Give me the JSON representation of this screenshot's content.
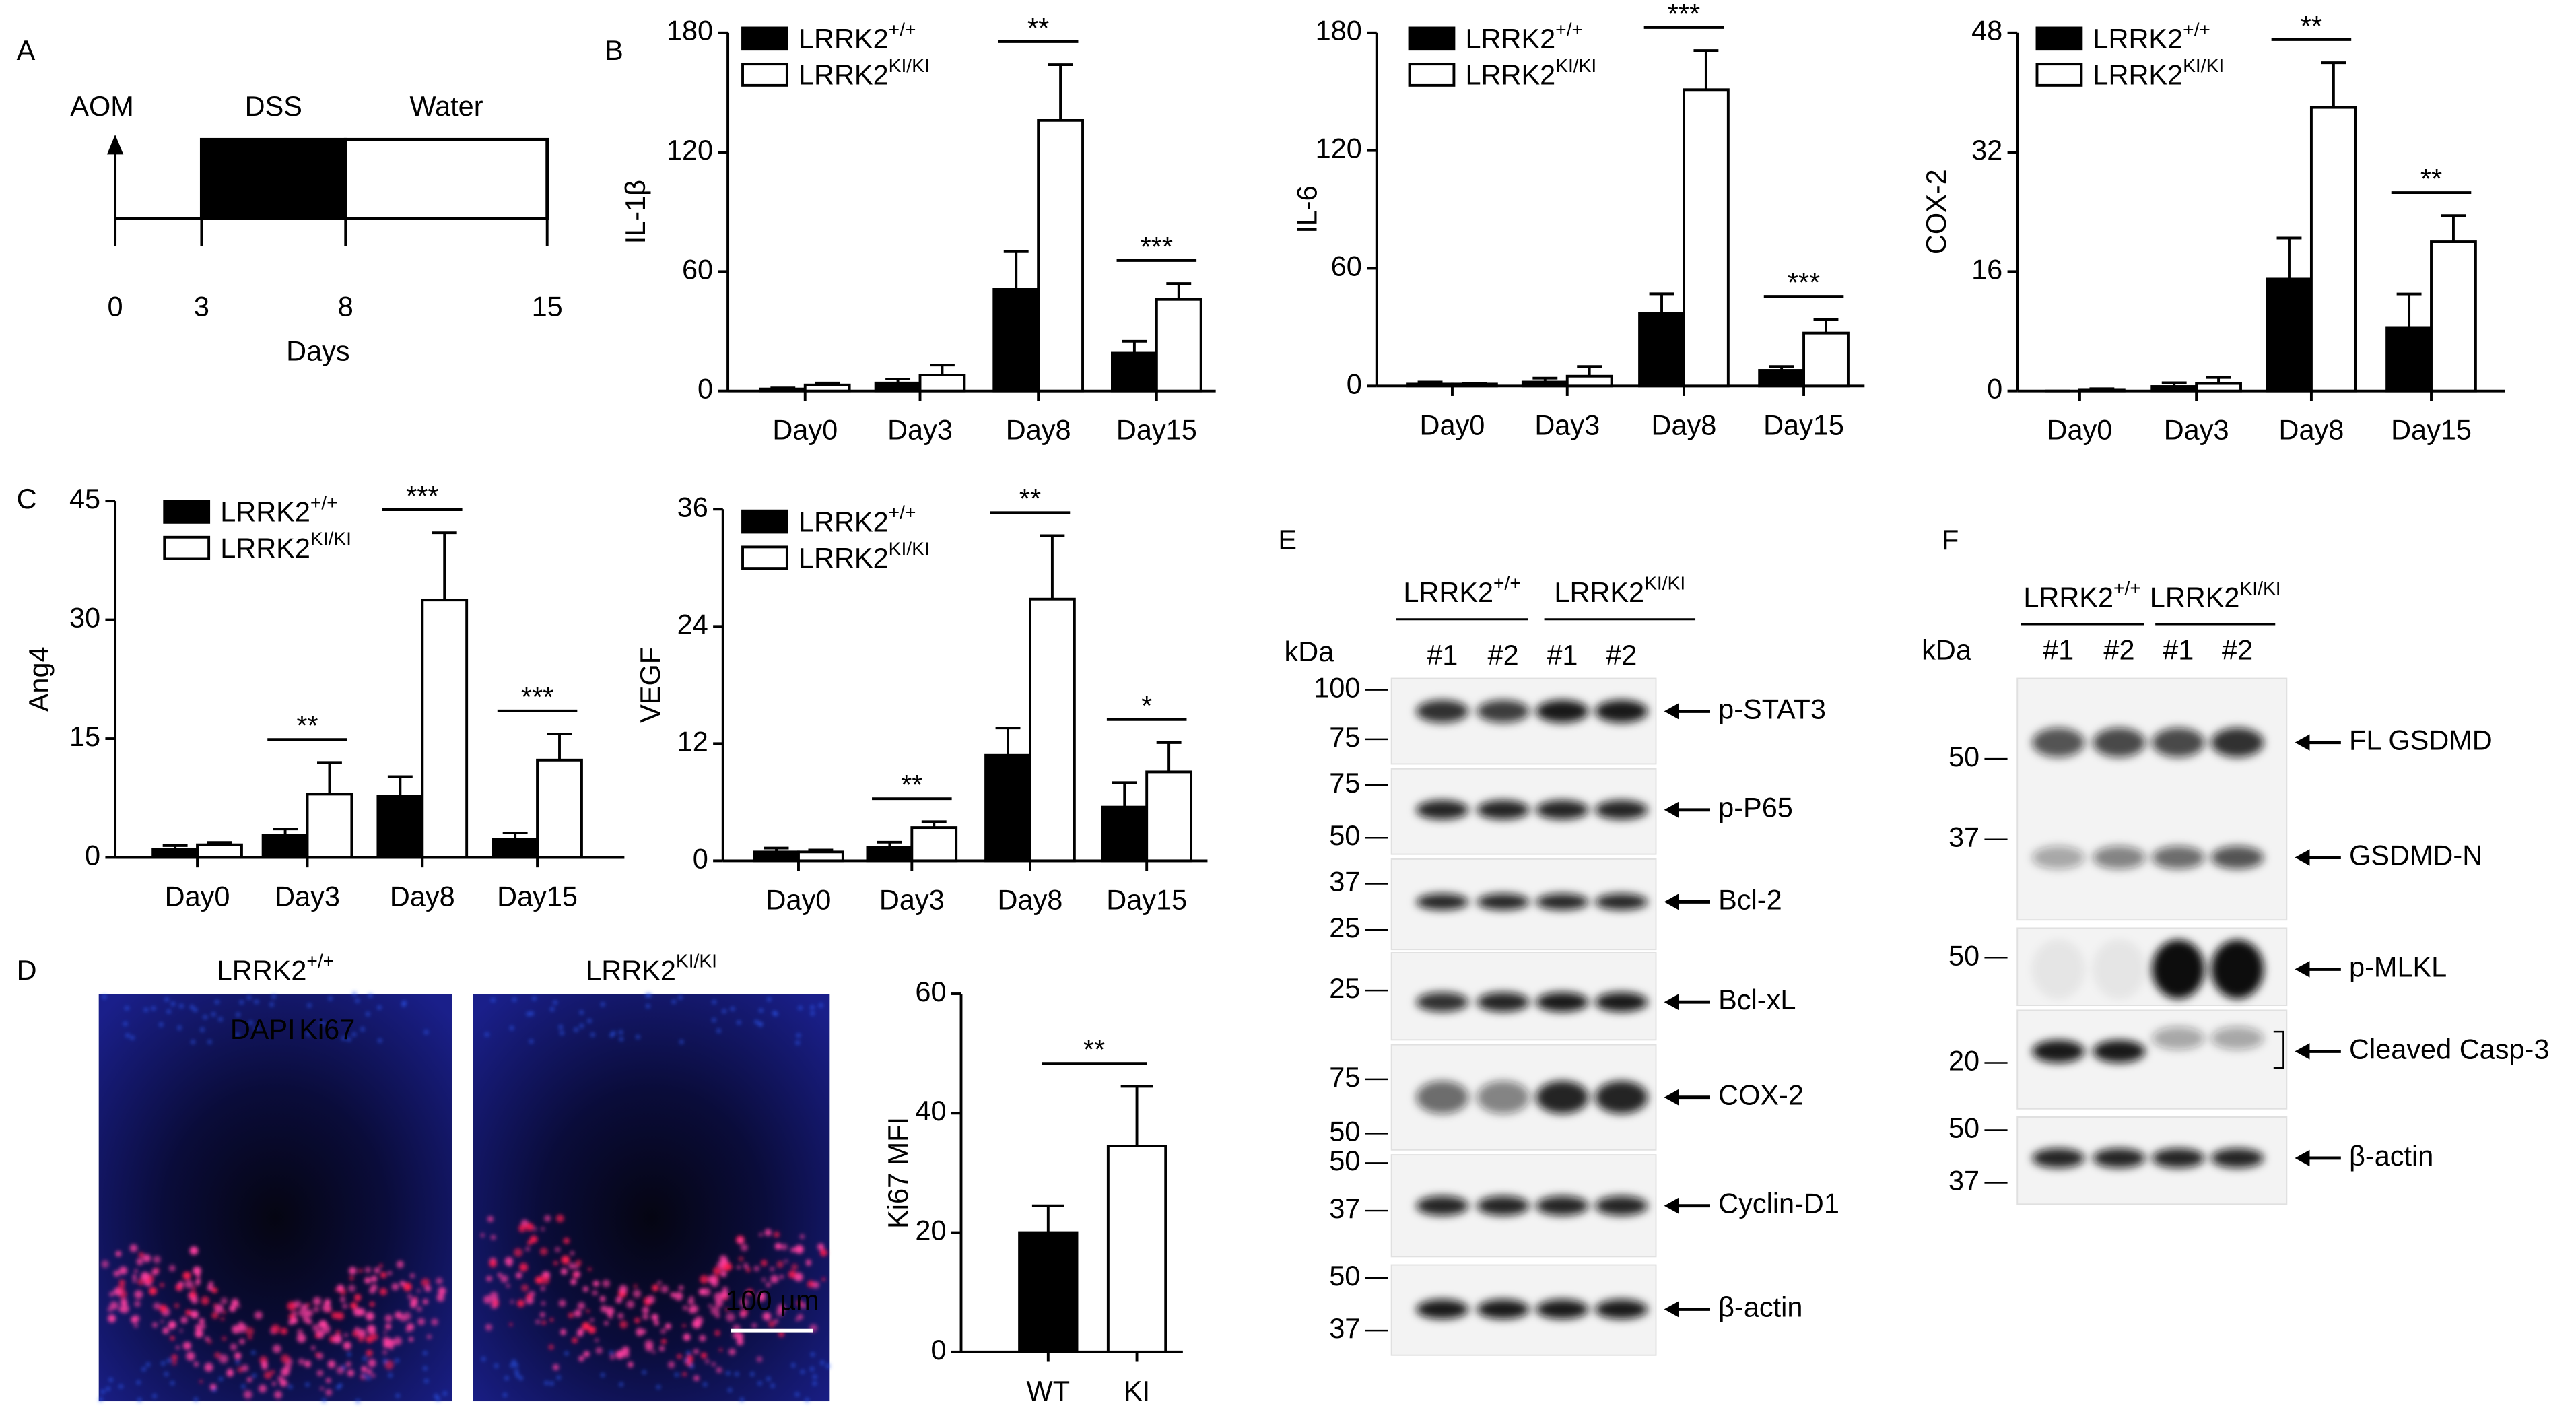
{
  "panel_letters": [
    "A",
    "B",
    "C",
    "D",
    "E",
    "F"
  ],
  "timeline": {
    "start_label": "AOM",
    "xlim": [
      0,
      15
    ],
    "phases": [
      {
        "label": "DSS",
        "start": 3,
        "end": 8,
        "color": "#000000"
      },
      {
        "label": "Water",
        "start": 8,
        "end": 15,
        "color": "#ffffff"
      }
    ],
    "ticks": [
      0,
      3,
      8,
      15
    ],
    "axis_label": "Days"
  },
  "chart_data": [
    {
      "type": "bar",
      "ylabel": "IL-1β",
      "categories": [
        "Day0",
        "Day3",
        "Day8",
        "Day15"
      ],
      "legend": "upper left",
      "series": [
        {
          "name": "LRRK2",
          "superscript": "+/+",
          "color": "#000000",
          "values": [
            1,
            4,
            51,
            19
          ],
          "errors": [
            0.5,
            2,
            19,
            6
          ]
        },
        {
          "name": "LRRK2",
          "superscript": "KI/KI",
          "color": "#ffffff",
          "values": [
            3,
            8,
            136,
            46
          ],
          "errors": [
            1,
            5,
            28,
            8
          ]
        }
      ],
      "ylim": [
        0,
        180
      ],
      "yticks": [
        0,
        60,
        120,
        180
      ],
      "annotations": [
        {
          "category": "Day8",
          "text": "**"
        },
        {
          "category": "Day15",
          "text": "***"
        }
      ]
    },
    {
      "type": "bar",
      "ylabel": "IL-6",
      "categories": [
        "Day0",
        "Day3",
        "Day8",
        "Day15"
      ],
      "legend": "upper left",
      "series": [
        {
          "name": "LRRK2",
          "superscript": "+/+",
          "color": "#000000",
          "values": [
            1,
            2,
            37,
            8
          ],
          "errors": [
            1,
            2,
            10,
            2
          ]
        },
        {
          "name": "LRRK2",
          "superscript": "KI/KI",
          "color": "#ffffff",
          "values": [
            1,
            5,
            151,
            27
          ],
          "errors": [
            0.5,
            5,
            20,
            7
          ]
        }
      ],
      "ylim": [
        0,
        180
      ],
      "yticks": [
        0,
        60,
        120,
        180
      ],
      "annotations": [
        {
          "category": "Day8",
          "text": "***"
        },
        {
          "category": "Day15",
          "text": "***"
        }
      ]
    },
    {
      "type": "bar",
      "ylabel": "COX-2",
      "categories": [
        "Day0",
        "Day3",
        "Day8",
        "Day15"
      ],
      "legend": "upper left",
      "series": [
        {
          "name": "LRRK2",
          "superscript": "+/+",
          "color": "#000000",
          "values": [
            0,
            0.6,
            15,
            8.5
          ],
          "errors": [
            0,
            0.5,
            5.5,
            4.5
          ]
        },
        {
          "name": "LRRK2",
          "superscript": "KI/KI",
          "color": "#ffffff",
          "values": [
            0.2,
            1,
            38,
            20
          ],
          "errors": [
            0.1,
            0.8,
            6,
            3.5
          ]
        }
      ],
      "ylim": [
        0,
        48
      ],
      "yticks": [
        0,
        16,
        32,
        48
      ],
      "annotations": [
        {
          "category": "Day8",
          "text": "**"
        },
        {
          "category": "Day15",
          "text": "**"
        }
      ]
    },
    {
      "type": "bar",
      "ylabel": "Ang4",
      "categories": [
        "Day0",
        "Day3",
        "Day8",
        "Day15"
      ],
      "legend": "upper left",
      "series": [
        {
          "name": "LRRK2",
          "superscript": "+/+",
          "color": "#000000",
          "values": [
            1,
            2.8,
            7.7,
            2.3
          ],
          "errors": [
            0.5,
            0.8,
            2.5,
            0.8
          ]
        },
        {
          "name": "LRRK2",
          "superscript": "KI/KI",
          "color": "#ffffff",
          "values": [
            1.6,
            8,
            32.5,
            12.3
          ],
          "errors": [
            0.3,
            4,
            8.5,
            3.3
          ]
        }
      ],
      "ylim": [
        0,
        45
      ],
      "yticks": [
        0,
        15,
        30,
        45
      ],
      "annotations": [
        {
          "category": "Day3",
          "text": "**"
        },
        {
          "category": "Day8",
          "text": "***"
        },
        {
          "category": "Day15",
          "text": "***"
        }
      ]
    },
    {
      "type": "bar",
      "ylabel": "VEGF",
      "categories": [
        "Day0",
        "Day3",
        "Day8",
        "Day15"
      ],
      "legend": "upper left",
      "series": [
        {
          "name": "LRRK2",
          "superscript": "+/+",
          "color": "#000000",
          "values": [
            0.9,
            1.4,
            10.8,
            5.5
          ],
          "errors": [
            0.4,
            0.5,
            2.8,
            2.5
          ]
        },
        {
          "name": "LRRK2",
          "superscript": "KI/KI",
          "color": "#ffffff",
          "values": [
            0.9,
            3.4,
            26.8,
            9.1
          ],
          "errors": [
            0.2,
            0.6,
            6.5,
            3
          ]
        }
      ],
      "ylim": [
        0,
        36
      ],
      "yticks": [
        0,
        12,
        24,
        36
      ],
      "annotations": [
        {
          "category": "Day3",
          "text": "**"
        },
        {
          "category": "Day8",
          "text": "**"
        },
        {
          "category": "Day15",
          "text": "*"
        }
      ]
    },
    {
      "type": "bar",
      "ylabel": "Ki67 MFI",
      "categories": [
        "WT",
        "KI"
      ],
      "values": [
        20,
        34.5
      ],
      "errors": [
        4.5,
        10
      ],
      "colors": [
        "#000000",
        "#ffffff"
      ],
      "ylim": [
        0,
        60
      ],
      "yticks": [
        0,
        20,
        40,
        60
      ],
      "annotations": [
        {
          "between": [
            "WT",
            "KI"
          ],
          "text": "**"
        }
      ]
    }
  ],
  "images": {
    "panels": [
      {
        "name": "LRRK2",
        "superscript": "+/+"
      },
      {
        "name": "LRRK2",
        "superscript": "KI/KI"
      }
    ],
    "stains": [
      {
        "label": "DAPI",
        "color": "#1f5fd6"
      },
      {
        "label": "Ki67",
        "color": "#ff2020"
      }
    ],
    "scale_bar": "100 µm"
  },
  "blots": [
    {
      "groups": [
        {
          "name": "LRRK2",
          "superscript": "+/+"
        },
        {
          "name": "LRRK2",
          "superscript": "KI/KI"
        }
      ],
      "lanes": [
        "#1",
        "#2",
        "#1",
        "#2"
      ],
      "unit": "kDa",
      "strips": [
        {
          "markers": [
            100,
            75
          ],
          "bands": [
            "p-STAT3"
          ]
        },
        {
          "markers": [
            75,
            50
          ],
          "bands": [
            "p-P65"
          ]
        },
        {
          "markers": [
            37,
            25
          ],
          "bands": [
            "Bcl-2"
          ]
        },
        {
          "markers": [
            25
          ],
          "bands": [
            "Bcl-xL"
          ]
        },
        {
          "markers": [
            75,
            50
          ],
          "bands": [
            "COX-2"
          ]
        },
        {
          "markers": [
            50,
            37
          ],
          "bands": [
            "Cyclin-D1"
          ]
        },
        {
          "markers": [
            50,
            37
          ],
          "bands": [
            "β-actin"
          ]
        }
      ]
    },
    {
      "groups": [
        {
          "name": "LRRK2",
          "superscript": "+/+"
        },
        {
          "name": "LRRK2",
          "superscript": "KI/KI"
        }
      ],
      "lanes": [
        "#1",
        "#2",
        "#1",
        "#2"
      ],
      "unit": "kDa",
      "strips": [
        {
          "markers": [
            50,
            37
          ],
          "bands": [
            "FL GSDMD",
            "GSDMD-N"
          ]
        },
        {
          "markers": [
            50
          ],
          "bands": [
            "p-MLKL"
          ]
        },
        {
          "markers": [
            20
          ],
          "bands": [
            "Cleaved Casp-3"
          ]
        },
        {
          "markers": [
            50,
            37
          ],
          "bands": [
            "β-actin"
          ]
        }
      ]
    }
  ]
}
